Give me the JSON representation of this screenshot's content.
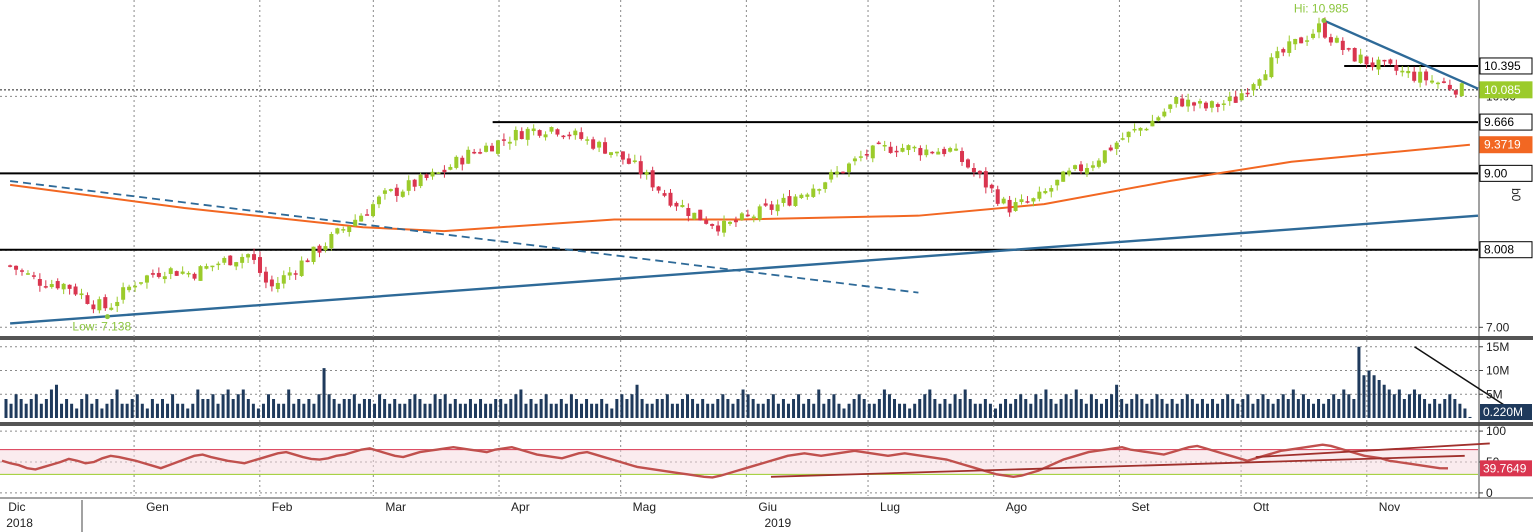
{
  "colors": {
    "up": "#9bcb2b",
    "down": "#d9354f",
    "ma": "#f26722",
    "trend": "#2e6a98",
    "volume": "#1f3a5c",
    "rsi": "#c0504d",
    "rsi_band": "#f6d8de",
    "level": "#000000",
    "grid": "#8a8a8a",
    "hilo": "#8cc63f"
  },
  "chart_data": [
    {
      "type": "candlestick",
      "panel": "price",
      "ylim": [
        6.9,
        11.2
      ],
      "y_ticks": [
        7.0,
        8.0,
        9.0,
        10.0
      ],
      "y_tick_labels": [
        "7.00",
        "8.00",
        "9.00",
        "10.00"
      ],
      "axis_label": "b0",
      "levels": [
        10.395,
        9.666,
        9.0,
        8.008
      ],
      "tags": [
        {
          "value": 10.395,
          "label": "10.395",
          "style": "white"
        },
        {
          "value": 10.085,
          "label": "10.085",
          "style": "green"
        },
        {
          "value": 9.666,
          "label": "9.666",
          "style": "white"
        },
        {
          "value": 9.3719,
          "label": "9.3719",
          "style": "orange"
        },
        {
          "value": 9.0,
          "label": "9.00",
          "style": "white"
        },
        {
          "value": 8.008,
          "label": "8.008",
          "style": "white"
        }
      ],
      "annotations": [
        {
          "text": "Hi: 10.985",
          "date": "2019-10-23",
          "value": 10.985
        },
        {
          "text": "Low: 7.138",
          "date": "2018-12-27",
          "value": 7.138
        }
      ],
      "close_series": [
        [
          "2018-12-03",
          7.8
        ],
        [
          "2018-12-10",
          7.6
        ],
        [
          "2018-12-17",
          7.55
        ],
        [
          "2018-12-24",
          7.3
        ],
        [
          "2018-12-27",
          7.25
        ],
        [
          "2019-01-03",
          7.6
        ],
        [
          "2019-01-10",
          7.75
        ],
        [
          "2019-01-17",
          7.7
        ],
        [
          "2019-01-24",
          7.85
        ],
        [
          "2019-01-31",
          7.95
        ],
        [
          "2019-02-05",
          7.5
        ],
        [
          "2019-02-12",
          7.8
        ],
        [
          "2019-02-19",
          8.1
        ],
        [
          "2019-02-26",
          8.4
        ],
        [
          "2019-03-05",
          8.7
        ],
        [
          "2019-03-12",
          8.85
        ],
        [
          "2019-03-19",
          9.0
        ],
        [
          "2019-03-26",
          9.25
        ],
        [
          "2019-04-02",
          9.4
        ],
        [
          "2019-04-09",
          9.55
        ],
        [
          "2019-04-16",
          9.6
        ],
        [
          "2019-04-23",
          9.45
        ],
        [
          "2019-04-30",
          9.3
        ],
        [
          "2019-05-07",
          9.05
        ],
        [
          "2019-05-14",
          8.7
        ],
        [
          "2019-05-21",
          8.45
        ],
        [
          "2019-05-28",
          8.3
        ],
        [
          "2019-06-04",
          8.45
        ],
        [
          "2019-06-11",
          8.6
        ],
        [
          "2019-06-18",
          8.8
        ],
        [
          "2019-06-25",
          9.0
        ],
        [
          "2019-07-02",
          9.25
        ],
        [
          "2019-07-09",
          9.35
        ],
        [
          "2019-07-16",
          9.3
        ],
        [
          "2019-07-23",
          9.3
        ],
        [
          "2019-07-30",
          8.95
        ],
        [
          "2019-08-06",
          8.55
        ],
        [
          "2019-08-13",
          8.65
        ],
        [
          "2019-08-20",
          8.95
        ],
        [
          "2019-08-27",
          9.15
        ],
        [
          "2019-09-03",
          9.45
        ],
        [
          "2019-09-10",
          9.65
        ],
        [
          "2019-09-17",
          9.95
        ],
        [
          "2019-09-24",
          9.85
        ],
        [
          "2019-10-01",
          9.95
        ],
        [
          "2019-10-08",
          10.35
        ],
        [
          "2019-10-15",
          10.65
        ],
        [
          "2019-10-22",
          10.9
        ],
        [
          "2019-10-29",
          10.55
        ],
        [
          "2019-11-05",
          10.4
        ],
        [
          "2019-11-12",
          10.3
        ],
        [
          "2019-11-19",
          10.2
        ],
        [
          "2019-11-26",
          10.085
        ]
      ],
      "moving_average": [
        [
          "2018-12-03",
          8.85
        ],
        [
          "2019-01-15",
          8.55
        ],
        [
          "2019-02-28",
          8.3
        ],
        [
          "2019-03-20",
          8.25
        ],
        [
          "2019-05-01",
          8.4
        ],
        [
          "2019-06-01",
          8.4
        ],
        [
          "2019-07-15",
          8.45
        ],
        [
          "2019-08-15",
          8.6
        ],
        [
          "2019-09-15",
          8.9
        ],
        [
          "2019-10-15",
          9.15
        ],
        [
          "2019-11-28",
          9.3719
        ]
      ],
      "trendlines": [
        {
          "style": "solid",
          "from": [
            "2018-12-03",
            7.05
          ],
          "to": [
            "2019-11-30",
            8.45
          ]
        },
        {
          "style": "dashed",
          "from": [
            "2018-12-03",
            8.9
          ],
          "to": [
            "2019-07-15",
            7.45
          ]
        },
        {
          "style": "solid",
          "from": [
            "2019-10-23",
            10.985
          ],
          "to": [
            "2019-11-30",
            10.1
          ]
        }
      ]
    },
    {
      "type": "bar",
      "panel": "volume",
      "ylim": [
        0,
        16
      ],
      "y_ticks": [
        5,
        10,
        15
      ],
      "y_tick_labels": [
        "5M",
        "10M",
        "15M"
      ],
      "tag": {
        "label": "0.220M"
      },
      "values": [
        4,
        3,
        5,
        4,
        3,
        4,
        5,
        3,
        4,
        6,
        7,
        3,
        4,
        3,
        2,
        4,
        5,
        3,
        4,
        2,
        3,
        4,
        6,
        3,
        3,
        4,
        5,
        3,
        2,
        4,
        3,
        4,
        3,
        5,
        3,
        3,
        2,
        3,
        6,
        4,
        4,
        5,
        3,
        5,
        6,
        4,
        5,
        6,
        4,
        3,
        2,
        3,
        5,
        4,
        3,
        3,
        6,
        3,
        4,
        3,
        4,
        3,
        5,
        10.5,
        5,
        4,
        3,
        4,
        4,
        5,
        3,
        4,
        4,
        3,
        5,
        4,
        3,
        4,
        3,
        3,
        4,
        5,
        4,
        3,
        3,
        5,
        4,
        5,
        3,
        4,
        3,
        3,
        4,
        3,
        4,
        3,
        3,
        4,
        4,
        3,
        4,
        5,
        6,
        3,
        4,
        3,
        4,
        5,
        3,
        3,
        4,
        3,
        5,
        4,
        3,
        4,
        3,
        3,
        4,
        3,
        2,
        4,
        5,
        4,
        5,
        7,
        4,
        3,
        3,
        4,
        4,
        5,
        3,
        3,
        4,
        5,
        4,
        3,
        4,
        3,
        3,
        4,
        5,
        4,
        3,
        4,
        6,
        5,
        4,
        3,
        3,
        4,
        5,
        3,
        4,
        3,
        4,
        5,
        3,
        4,
        3,
        6,
        3,
        4,
        5,
        3,
        2,
        3,
        4,
        5,
        4,
        3,
        3,
        4,
        6,
        5,
        4,
        3,
        3,
        2,
        3,
        4,
        5,
        6,
        4,
        3,
        4,
        3,
        5,
        4,
        6,
        4,
        3,
        3,
        4,
        3,
        2,
        3,
        4,
        3,
        4,
        5,
        4,
        3,
        5,
        4,
        6,
        4,
        3,
        4,
        5,
        4,
        6,
        4,
        3,
        5,
        4,
        3,
        4,
        5,
        7,
        4,
        3,
        4,
        5,
        4,
        3,
        4,
        5,
        4,
        3,
        4,
        3,
        4,
        5,
        4,
        3,
        4,
        3,
        4,
        3,
        4,
        5,
        4,
        3,
        4,
        5,
        3,
        4,
        5,
        4,
        3,
        4,
        5,
        4,
        6,
        4,
        5,
        4,
        3,
        4,
        3,
        4,
        5,
        4,
        6,
        5,
        4,
        15,
        9,
        10,
        9,
        8,
        7,
        6,
        5,
        6,
        4,
        5,
        6,
        5,
        4,
        3,
        4,
        3,
        4,
        5,
        4,
        3,
        2,
        0.22
      ],
      "trendline": {
        "from_index": 279,
        "from_value": 15,
        "to_index": 300,
        "to_value": 0.5
      }
    },
    {
      "type": "line",
      "panel": "rsi",
      "ylim": [
        -5,
        105
      ],
      "y_ticks": [
        0,
        50,
        100
      ],
      "y_tick_labels": [
        "0",
        "50",
        "100"
      ],
      "bands": [
        30,
        70
      ],
      "tag": {
        "value": 39.7649,
        "label": "39.7649"
      },
      "values": [
        52,
        48,
        45,
        40,
        38,
        42,
        46,
        50,
        55,
        52,
        48,
        50,
        56,
        60,
        58,
        55,
        52,
        48,
        44,
        40,
        45,
        50,
        55,
        60,
        62,
        58,
        55,
        52,
        50,
        48,
        52,
        56,
        60,
        64,
        66,
        62,
        58,
        55,
        54,
        56,
        60,
        62,
        66,
        70,
        72,
        68,
        64,
        60,
        58,
        62,
        66,
        68,
        70,
        72,
        74,
        72,
        70,
        68,
        66,
        70,
        72,
        74,
        70,
        66,
        62,
        60,
        58,
        56,
        60,
        64,
        66,
        62,
        58,
        54,
        50,
        46,
        42,
        40,
        38,
        36,
        34,
        32,
        30,
        28,
        26,
        25,
        28,
        32,
        36,
        40,
        44,
        48,
        52,
        56,
        60,
        62,
        64,
        62,
        60,
        62,
        64,
        66,
        68,
        66,
        64,
        62,
        60,
        62,
        64,
        62,
        60,
        58,
        56,
        54,
        50,
        46,
        42,
        38,
        34,
        30,
        28,
        26,
        28,
        32,
        36,
        42,
        48,
        54,
        58,
        62,
        66,
        68,
        70,
        72,
        74,
        70,
        68,
        66,
        64,
        62,
        66,
        70,
        74,
        76,
        72,
        68,
        64,
        60,
        56,
        52,
        56,
        60,
        64,
        68,
        70,
        72,
        74,
        76,
        78,
        76,
        72,
        68,
        64,
        60,
        58,
        56,
        52,
        50,
        48,
        46,
        44,
        42,
        40,
        39.7649
      ],
      "trendlines": [
        {
          "from_index": 92,
          "from_value": 26,
          "to_index": 175,
          "to_value": 60
        },
        {
          "from_index": 150,
          "from_value": 58,
          "to_index": 178,
          "to_value": 80
        }
      ]
    }
  ],
  "x_axis": {
    "months": [
      {
        "label": "Dic",
        "date": "2018-12-05"
      },
      {
        "label": "Gen",
        "date": "2019-01-08"
      },
      {
        "label": "Feb",
        "date": "2019-02-08"
      },
      {
        "label": "Mar",
        "date": "2019-03-08"
      },
      {
        "label": "Apr",
        "date": "2019-04-08"
      },
      {
        "label": "Mag",
        "date": "2019-05-08"
      },
      {
        "label": "Giu",
        "date": "2019-06-08"
      },
      {
        "label": "Lug",
        "date": "2019-07-08"
      },
      {
        "label": "Ago",
        "date": "2019-08-08"
      },
      {
        "label": "Set",
        "date": "2019-09-08"
      },
      {
        "label": "Ott",
        "date": "2019-10-08"
      },
      {
        "label": "Nov",
        "date": "2019-11-08"
      }
    ],
    "years": [
      {
        "label": "2018",
        "date": "2018-12-05"
      },
      {
        "label": "2019",
        "date": "2019-06-10"
      }
    ]
  }
}
